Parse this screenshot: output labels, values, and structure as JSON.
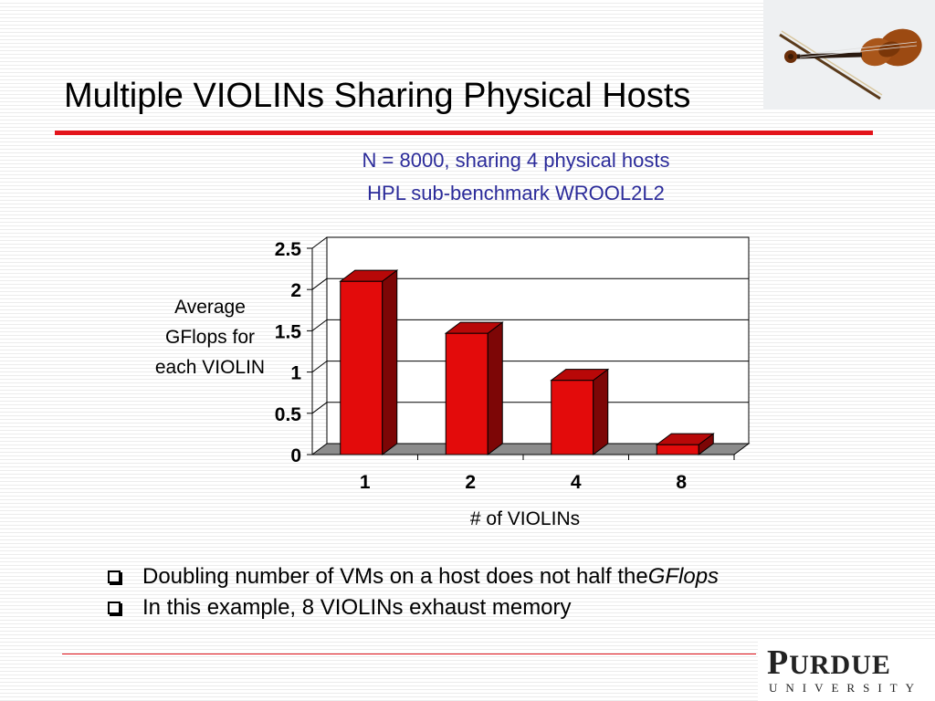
{
  "slide": {
    "title": "Multiple VIOLINs Sharing Physical Hosts",
    "bullets": [
      {
        "text": "Doubling number of VMs on a host does not half the ",
        "emphasis": "GFlops"
      },
      {
        "text": "In this example, 8 VIOLINs exhaust memory",
        "emphasis": ""
      }
    ],
    "logo": {
      "first_letter": "P",
      "rest": "URDUE",
      "sub": "UNIVERSITY"
    },
    "colors": {
      "accent_red": "#e3141b",
      "title_blue": "#2b2b9a",
      "bar_red": "#e30b0b"
    },
    "icons": [
      "violin-image",
      "checkbox-bullet-icon"
    ]
  },
  "chart_data": {
    "type": "bar",
    "title": "N = 8000, sharing 4 physical hosts",
    "subtitle": "HPL sub-benchmark WROOL2L2",
    "categories": [
      "1",
      "2",
      "4",
      "8"
    ],
    "values": [
      2.1,
      1.47,
      0.9,
      0.12
    ],
    "ylabel": "Average GFlops for each VIOLIN",
    "xlabel": "# of VIOLINs",
    "ylim": [
      0,
      2.5
    ],
    "yticks": [
      "0",
      "0.5",
      "1",
      "1.5",
      "2",
      "2.5"
    ],
    "grid": true,
    "style": "3d"
  }
}
